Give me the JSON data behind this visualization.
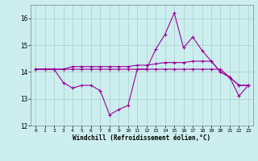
{
  "line1_x": [
    0,
    1,
    2,
    3,
    4,
    5,
    6,
    7,
    8,
    9,
    10,
    11,
    12,
    13,
    14,
    15,
    16,
    17,
    18,
    19,
    20,
    21,
    22,
    23
  ],
  "line1_y": [
    14.1,
    14.1,
    14.1,
    13.6,
    13.4,
    13.5,
    13.5,
    13.3,
    12.4,
    12.6,
    12.75,
    14.1,
    14.1,
    14.85,
    15.4,
    16.2,
    14.9,
    15.3,
    14.8,
    14.4,
    14.0,
    13.8,
    13.1,
    13.5
  ],
  "line2_x": [
    0,
    1,
    2,
    3,
    4,
    5,
    6,
    7,
    8,
    9,
    10,
    11,
    12,
    13,
    14,
    15,
    16,
    17,
    18,
    19,
    20,
    21,
    22,
    23
  ],
  "line2_y": [
    14.1,
    14.1,
    14.1,
    14.1,
    14.2,
    14.2,
    14.2,
    14.2,
    14.2,
    14.2,
    14.2,
    14.25,
    14.25,
    14.3,
    14.35,
    14.35,
    14.35,
    14.4,
    14.4,
    14.4,
    14.0,
    13.8,
    13.5,
    13.5
  ],
  "line3_x": [
    0,
    1,
    2,
    3,
    4,
    5,
    6,
    7,
    8,
    9,
    10,
    11,
    12,
    13,
    14,
    15,
    16,
    17,
    18,
    19,
    20,
    21,
    22,
    23
  ],
  "line3_y": [
    14.1,
    14.1,
    14.1,
    14.1,
    14.1,
    14.1,
    14.1,
    14.1,
    14.1,
    14.1,
    14.1,
    14.1,
    14.1,
    14.1,
    14.1,
    14.1,
    14.1,
    14.1,
    14.1,
    14.1,
    14.1,
    13.8,
    13.5,
    13.5
  ],
  "line_color": "#990099",
  "bg_color": "#cceeee",
  "grid_color": "#aacccc",
  "xlabel": "Windchill (Refroidissement éolien,°C)",
  "xlim_min": -0.5,
  "xlim_max": 23.5,
  "ylim_min": 12.0,
  "ylim_max": 16.5,
  "yticks": [
    12,
    13,
    14,
    15,
    16
  ],
  "xticks": [
    0,
    1,
    2,
    3,
    4,
    5,
    6,
    7,
    8,
    9,
    10,
    11,
    12,
    13,
    14,
    15,
    16,
    17,
    18,
    19,
    20,
    21,
    22,
    23
  ]
}
